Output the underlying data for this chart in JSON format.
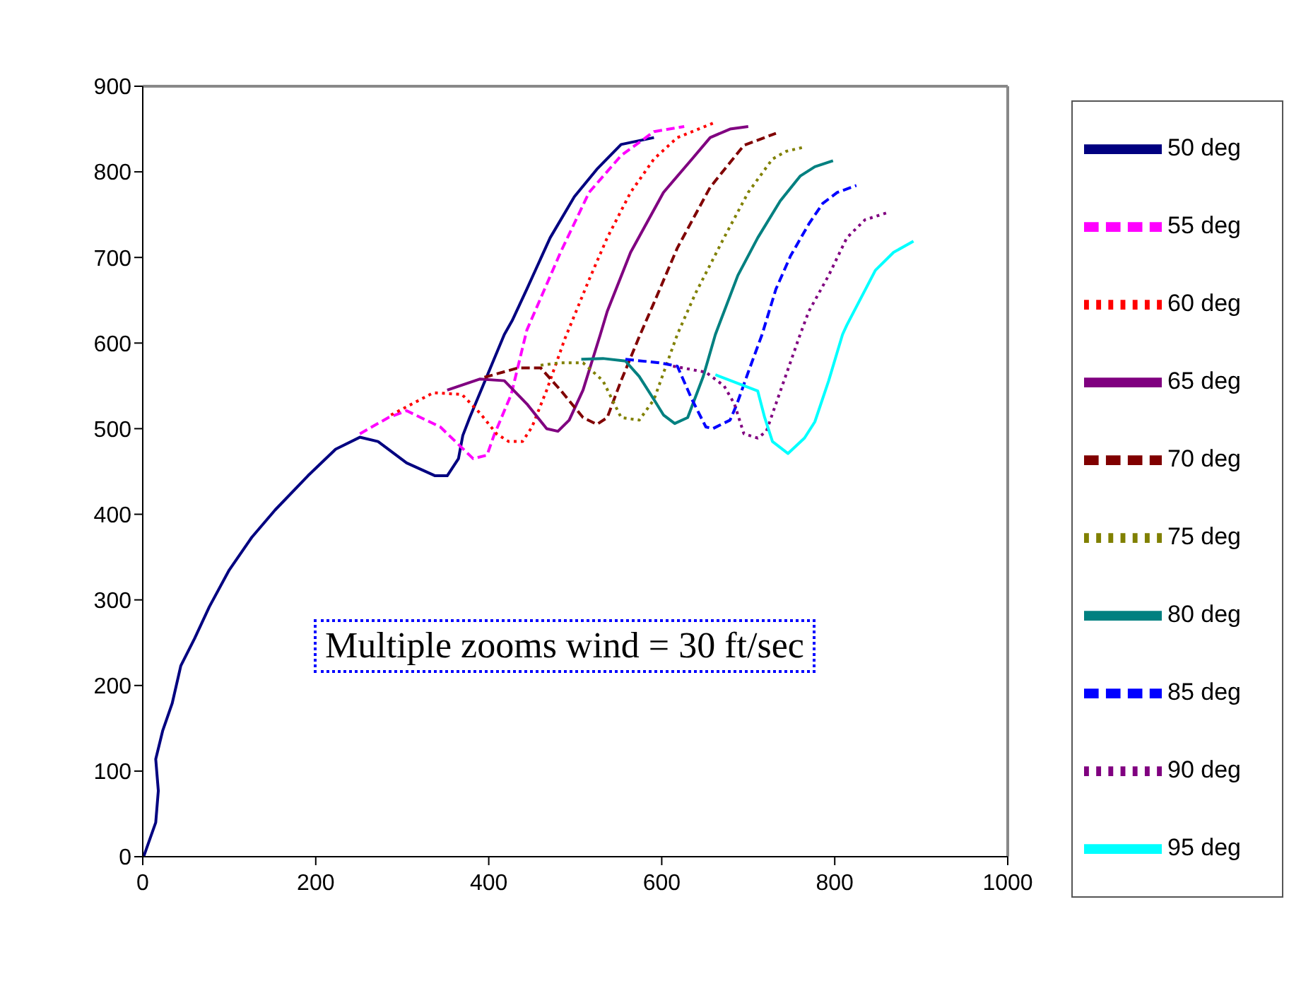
{
  "chart_data": {
    "type": "line",
    "xlim": [
      0,
      1000
    ],
    "ylim": [
      0,
      900
    ],
    "xticks": [
      0,
      200,
      400,
      600,
      800,
      1000
    ],
    "yticks": [
      0,
      100,
      200,
      300,
      400,
      500,
      600,
      700,
      800,
      900
    ],
    "grid": false,
    "legend": "right",
    "marker": "none",
    "annotations": [
      "Multiple zooms wind = 30 ft/sec"
    ],
    "series": [
      {
        "name": "50 deg",
        "color": "#000080",
        "line_style": "solid",
        "x": [
          1,
          15,
          18,
          15,
          23,
          34,
          44,
          60,
          77,
          100,
          126,
          153,
          191,
          223,
          251,
          272,
          305,
          338,
          352,
          365,
          370,
          378,
          418,
          427,
          444,
          471,
          499,
          525,
          553,
          591
        ],
        "values": [
          0,
          40,
          77,
          114,
          147,
          179,
          223,
          255,
          292,
          335,
          373,
          405,
          445,
          476,
          490,
          485,
          460,
          445,
          445,
          465,
          492,
          513,
          610,
          626,
          663,
          723,
          771,
          803,
          832,
          840
        ]
      },
      {
        "name": "55 deg",
        "color": "#ff00ff",
        "line_style": "dashed",
        "x": [
          251,
          284,
          305,
          344,
          382,
          398,
          406,
          426,
          444,
          483,
          516,
          553,
          591,
          626
        ],
        "values": [
          494,
          513,
          521,
          502,
          465,
          469,
          492,
          540,
          615,
          706,
          776,
          819,
          847,
          853
        ]
      },
      {
        "name": "60 deg",
        "color": "#ff0000",
        "line_style": "dotted",
        "x": [
          287,
          336,
          369,
          390,
          409,
          423,
          439,
          450,
          467,
          488,
          516,
          537,
          564,
          591,
          618,
          662
        ],
        "values": [
          516,
          542,
          540,
          518,
          494,
          485,
          485,
          502,
          545,
          605,
          674,
          723,
          776,
          815,
          840,
          858
        ]
      },
      {
        "name": "65 deg",
        "color": "#800080",
        "line_style": "solid",
        "x": [
          352,
          390,
          418,
          444,
          467,
          480,
          493,
          509,
          529,
          537,
          564,
          602,
          635,
          656,
          679,
          700
        ],
        "values": [
          545,
          558,
          556,
          529,
          500,
          497,
          510,
          545,
          610,
          637,
          706,
          776,
          815,
          840,
          850,
          853
        ]
      },
      {
        "name": "70 deg",
        "color": "#800000",
        "line_style": "dashed",
        "x": [
          395,
          434,
          460,
          483,
          509,
          525,
          537,
          553,
          573,
          591,
          618,
          656,
          695,
          732
        ],
        "values": [
          560,
          571,
          571,
          545,
          513,
          505,
          513,
          556,
          605,
          647,
          711,
          782,
          831,
          845
        ]
      },
      {
        "name": "75 deg",
        "color": "#808000",
        "line_style": "dotted",
        "x": [
          460,
          483,
          509,
          532,
          553,
          574,
          591,
          618,
          639,
          672,
          700,
          728,
          744,
          765
        ],
        "values": [
          574,
          577,
          577,
          556,
          513,
          510,
          534,
          610,
          658,
          723,
          776,
          815,
          824,
          829
        ]
      },
      {
        "name": "80 deg",
        "color": "#008080",
        "line_style": "solid",
        "x": [
          507,
          532,
          558,
          574,
          591,
          602,
          615,
          630,
          648,
          662,
          688,
          711,
          737,
          760,
          777,
          798
        ],
        "values": [
          581,
          582,
          579,
          561,
          534,
          516,
          506,
          513,
          561,
          610,
          679,
          723,
          766,
          795,
          806,
          813
        ]
      },
      {
        "name": "85 deg",
        "color": "#0000ff",
        "line_style": "dashed",
        "x": [
          558,
          597,
          618,
          635,
          651,
          659,
          679,
          687,
          700,
          716,
          732,
          749,
          770,
          786,
          803,
          825
        ],
        "values": [
          581,
          577,
          573,
          534,
          502,
          500,
          510,
          529,
          566,
          610,
          663,
          702,
          739,
          763,
          776,
          784
        ]
      },
      {
        "name": "90 deg",
        "color": "#800080",
        "line_style": "dotted",
        "x": [
          613,
          651,
          672,
          684,
          695,
          711,
          721,
          732,
          760,
          770,
          793,
          814,
          835,
          863
        ],
        "values": [
          573,
          566,
          550,
          529,
          494,
          489,
          497,
          529,
          610,
          637,
          679,
          723,
          744,
          753
        ]
      },
      {
        "name": "95 deg",
        "color": "#00ffff",
        "line_style": "solid",
        "x": [
          662,
          711,
          719,
          728,
          746,
          765,
          777,
          793,
          809,
          814,
          847,
          868,
          891
        ],
        "values": [
          563,
          544,
          513,
          485,
          471,
          489,
          508,
          556,
          610,
          621,
          685,
          706,
          719
        ]
      }
    ]
  }
}
